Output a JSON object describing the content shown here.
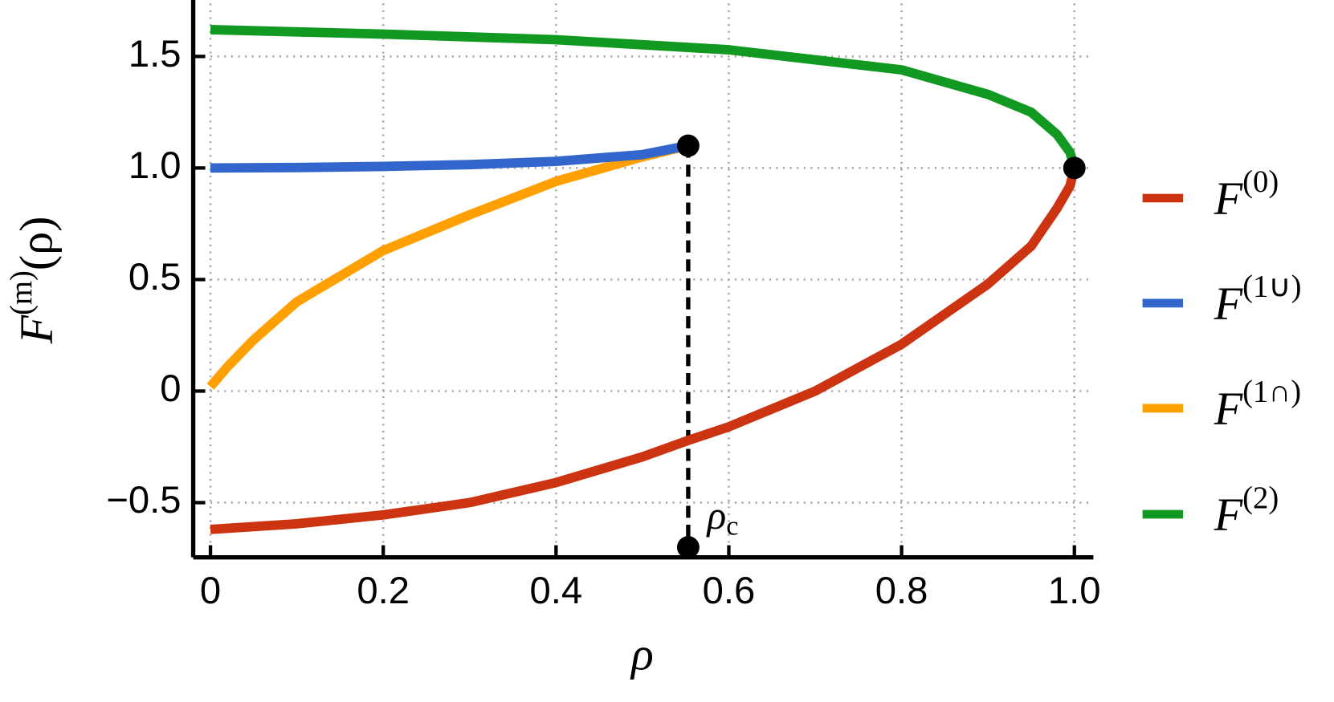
{
  "chart_data": {
    "type": "line",
    "xlabel": "ρ",
    "ylabel": {
      "base": "F",
      "sup": "(m)",
      "rest": "(ρ)"
    },
    "xlim": [
      -0.02,
      1.022
    ],
    "ylim": [
      -0.745,
      1.753
    ],
    "xticks": [
      0,
      0.2,
      0.4,
      0.6,
      0.8,
      {
        "value": 1,
        "label": "1.0"
      }
    ],
    "yticks": [
      {
        "value": -0.5,
        "label": "−0.5"
      },
      0,
      0.5,
      {
        "value": 1,
        "label": "1.0"
      },
      1.5
    ],
    "grid": true,
    "legend": "right",
    "series": [
      {
        "name": "F",
        "superscript": "(0)",
        "color": "#cc3311",
        "x": [
          0,
          0.1,
          0.2,
          0.3,
          0.4,
          0.5,
          0.55,
          0.6,
          0.7,
          0.8,
          0.9,
          0.95,
          0.98,
          0.995,
          1
        ],
        "values": [
          -0.62,
          -0.595,
          -0.555,
          -0.5,
          -0.41,
          -0.295,
          -0.225,
          -0.16,
          0,
          0.21,
          0.48,
          0.65,
          0.82,
          0.92,
          1
        ]
      },
      {
        "name": "F",
        "superscript": "(1∪)",
        "color": "#3366cc",
        "x": [
          0,
          0.1,
          0.2,
          0.3,
          0.4,
          0.5,
          0.553
        ],
        "values": [
          1,
          1.002,
          1.007,
          1.015,
          1.03,
          1.06,
          1.1
        ]
      },
      {
        "name": "F",
        "superscript": "(1∩)",
        "color": "#ff9f00",
        "x": [
          0,
          0.02,
          0.05,
          0.1,
          0.2,
          0.3,
          0.4,
          0.5,
          0.553
        ],
        "values": [
          0.02,
          0.11,
          0.23,
          0.4,
          0.63,
          0.79,
          0.94,
          1.05,
          1.1
        ]
      },
      {
        "name": "F",
        "superscript": "(2)",
        "color": "#119922",
        "x": [
          0,
          0.2,
          0.4,
          0.6,
          0.8,
          0.9,
          0.95,
          0.98,
          0.995,
          1
        ],
        "values": [
          1.62,
          1.6,
          1.575,
          1.53,
          1.44,
          1.33,
          1.25,
          1.15,
          1.07,
          1
        ]
      }
    ],
    "points": [
      {
        "x": 1,
        "y": 1
      },
      {
        "x": 0.553,
        "y": 1.1
      },
      {
        "x": 0.553,
        "y": -0.7
      }
    ],
    "annotation": {
      "text": "ρ",
      "subscript": "c"
    }
  }
}
